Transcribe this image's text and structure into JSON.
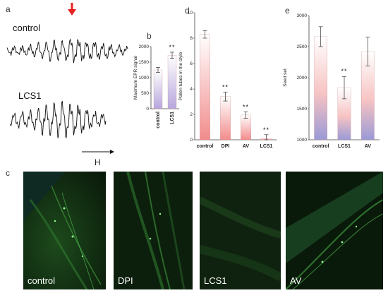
{
  "panels": {
    "a": {
      "letter": "a",
      "trace_labels": [
        "control",
        "LCS1"
      ],
      "xaxis_label": "H"
    },
    "c": {
      "letter": "c",
      "images": [
        "control",
        "DPI",
        "LCS1",
        "AV"
      ]
    }
  },
  "chart_data": [
    {
      "panel": "b",
      "type": "bar",
      "ylabel": "Maximum EPR signal",
      "categories": [
        "control",
        "LCS1"
      ],
      "values": [
        1250,
        1720
      ],
      "errors": [
        80,
        100
      ],
      "significance": [
        "",
        "**"
      ],
      "ylim": [
        0,
        2000
      ],
      "yticks": [
        0,
        500,
        1000,
        1500,
        2000
      ],
      "colors": {
        "top": "#ffffff",
        "bottom": "#b7a6dd"
      }
    },
    {
      "panel": "d",
      "type": "bar",
      "ylabel": "Pollen tubes in the style",
      "categories": [
        "control",
        "DPI",
        "AV",
        "LCS1"
      ],
      "values": [
        8.3,
        3.4,
        1.95,
        0.1
      ],
      "errors": [
        0.3,
        0.35,
        0.25,
        0.3
      ],
      "significance": [
        "",
        "**",
        "**",
        "**"
      ],
      "ylim": [
        0,
        10
      ],
      "yticks": [
        0,
        2,
        4,
        6,
        8,
        10
      ],
      "colors": {
        "top": "#ffffff",
        "bottom": "#f28c8c"
      }
    },
    {
      "panel": "e",
      "type": "bar",
      "ylabel": "Seed set",
      "categories": [
        "control",
        "LCS1",
        "AV"
      ],
      "values": [
        2660,
        1840,
        2420
      ],
      "errors": [
        160,
        180,
        230
      ],
      "significance": [
        "",
        "**",
        ""
      ],
      "ylim": [
        1000,
        3000
      ],
      "yticks": [
        1000,
        1500,
        2000,
        2500,
        3000
      ],
      "colors": {
        "top": "#ffffff",
        "mid": "#f7c3c3",
        "bottom": "#9a9ad6"
      }
    }
  ]
}
